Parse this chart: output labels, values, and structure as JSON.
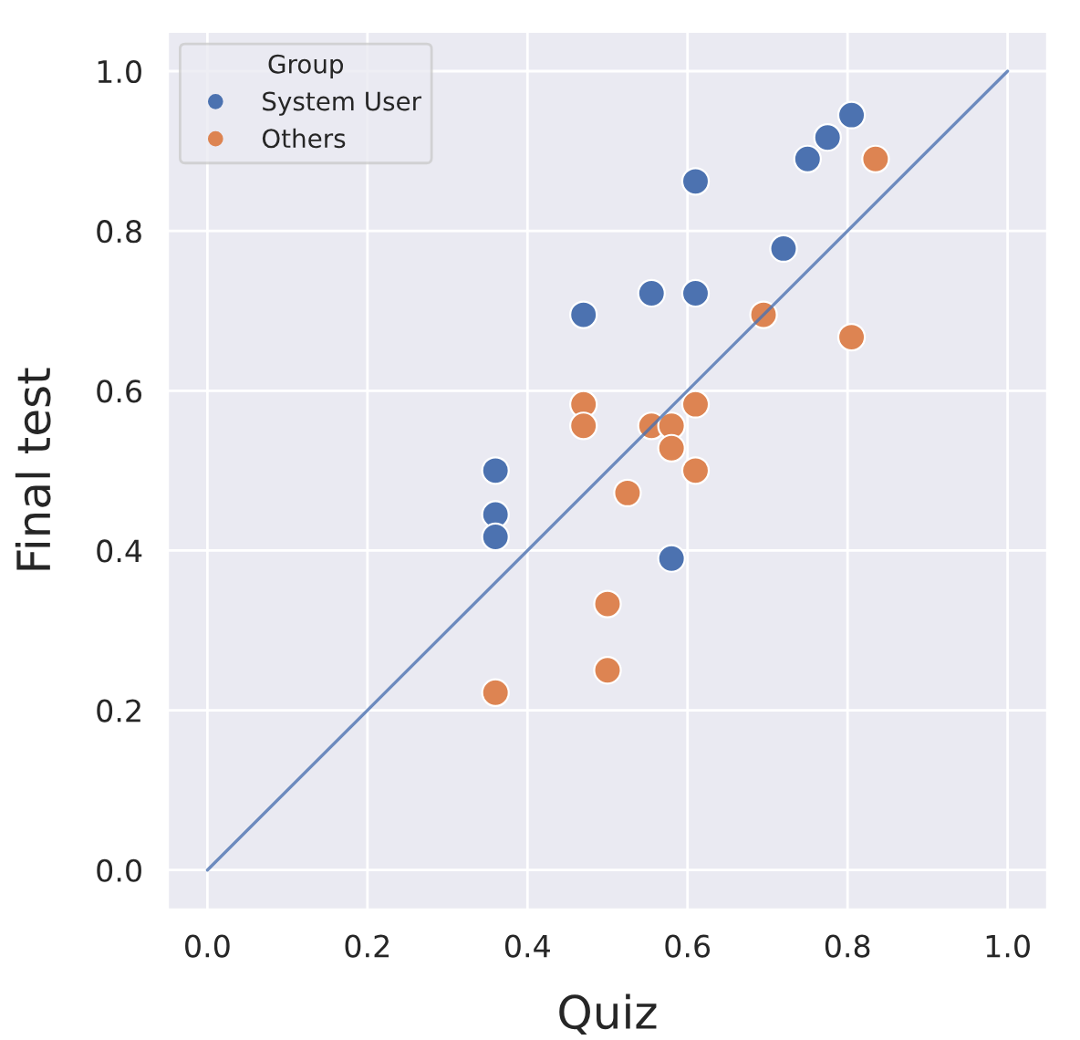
{
  "chart_data": {
    "type": "scatter",
    "xlabel": "Quiz",
    "ylabel": "Final test",
    "legend_title": "Group",
    "xlim": [
      -0.05,
      1.05
    ],
    "ylim": [
      -0.05,
      1.05
    ],
    "xticks": [
      {
        "value": 0,
        "label": "0.0"
      },
      0.2,
      0.4,
      0.6,
      0.8,
      {
        "value": 1,
        "label": "1.0"
      }
    ],
    "yticks": [
      {
        "value": 0,
        "label": "0.0"
      },
      0.2,
      0.4,
      0.6,
      0.8,
      {
        "value": 1,
        "label": "1.0"
      }
    ],
    "grid": true,
    "legend": "top left",
    "marker": "circle",
    "series": [
      {
        "name": "System User",
        "color": "#4c72b0",
        "x": [
          0.36,
          0.36,
          0.36,
          0.47,
          0.555,
          0.61,
          0.61,
          0.72,
          0.75,
          0.775,
          0.805,
          0.58
        ],
        "values": [
          0.5,
          0.445,
          0.417,
          0.695,
          0.722,
          0.722,
          0.862,
          0.778,
          0.89,
          0.917,
          0.945,
          0.39
        ]
      },
      {
        "name": "Others",
        "color": "#dd8452",
        "x": [
          0.36,
          0.47,
          0.47,
          0.555,
          0.58,
          0.58,
          0.61,
          0.61,
          0.525,
          0.5,
          0.5,
          0.695,
          0.805,
          0.835
        ],
        "values": [
          0.222,
          0.583,
          0.556,
          0.556,
          0.556,
          0.528,
          0.583,
          0.5,
          0.472,
          0.333,
          0.25,
          0.695,
          0.667,
          0.89
        ]
      },
      {
        "type": "line",
        "marker": "none",
        "color": "#4c72b0",
        "x": [
          0,
          1
        ],
        "values": [
          0,
          1
        ]
      }
    ]
  }
}
